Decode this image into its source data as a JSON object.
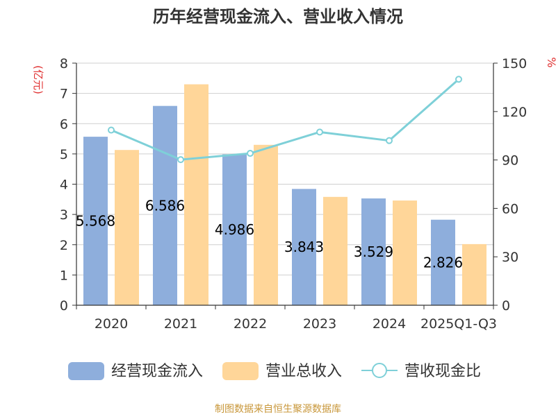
{
  "chart_data": {
    "type": "bar",
    "title": "历年经营现金流入、营业收入情况",
    "categories": [
      "2020",
      "2021",
      "2022",
      "2023",
      "2024",
      "2025Q1-Q3"
    ],
    "ylabel_left": "(亿元)",
    "ylabel_right": "%",
    "ylim_left": [
      0,
      8
    ],
    "yticks_left": [
      0,
      1,
      2,
      3,
      4,
      5,
      6,
      7,
      8
    ],
    "ylim_right": [
      0,
      150
    ],
    "yticks_right": [
      0,
      30,
      60,
      90,
      120,
      150
    ],
    "grid": true,
    "legend_position": "bottom",
    "series": [
      {
        "name": "经营现金流入",
        "kind": "bar",
        "axis": "left",
        "color": "#8EAEDC",
        "values": [
          5.568,
          6.586,
          4.986,
          3.843,
          3.529,
          2.826
        ],
        "labels": [
          "5.568",
          "6.586",
          "4.986",
          "3.843",
          "3.529",
          "2.826"
        ]
      },
      {
        "name": "营业总收入",
        "kind": "bar",
        "axis": "left",
        "color": "#FFD699",
        "values": [
          5.13,
          7.3,
          5.3,
          3.58,
          3.46,
          2.02
        ]
      },
      {
        "name": "营收现金比",
        "kind": "line",
        "axis": "right",
        "color": "#7ED0D8",
        "values": [
          108.5,
          90.2,
          94.1,
          107.3,
          102.0,
          140.0
        ]
      }
    ],
    "source": "制图数据来自恒生聚源数据库",
    "colors": {
      "axis_label_left": "#E03030",
      "axis_label_right": "#E03030",
      "source_text": "#C8973A"
    }
  }
}
